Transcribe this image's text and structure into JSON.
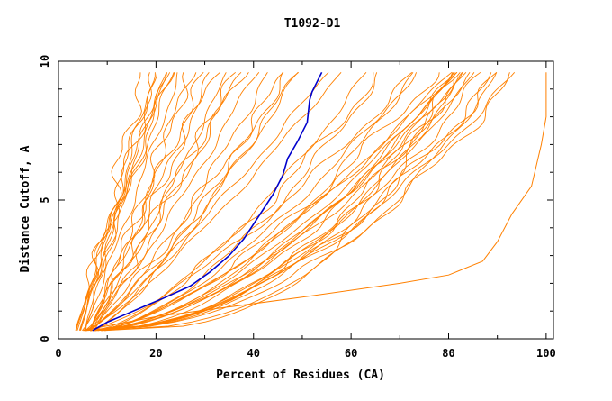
{
  "chart_data": {
    "type": "line",
    "title": "T1092-D1",
    "xlabel": "Percent of Residues (CA)",
    "ylabel": "Distance Cutoff, A",
    "xlim": [
      0,
      101.5
    ],
    "ylim": [
      0,
      10
    ],
    "x_ticks": [
      0,
      20,
      40,
      60,
      80,
      100
    ],
    "y_ticks": [
      0,
      5,
      10
    ],
    "grid": false,
    "legend": "none",
    "colors": {
      "models": "#ff8000",
      "highlight": "#0000cc"
    },
    "highlight_series": {
      "points": [
        [
          7,
          0.3
        ],
        [
          10,
          0.6
        ],
        [
          14,
          0.9
        ],
        [
          18,
          1.2
        ],
        [
          22,
          1.5
        ],
        [
          27,
          1.9
        ],
        [
          31,
          2.4
        ],
        [
          35,
          3.0
        ],
        [
          38,
          3.6
        ],
        [
          41,
          4.4
        ],
        [
          44,
          5.2
        ],
        [
          46,
          5.9
        ],
        [
          47,
          6.5
        ],
        [
          49,
          7.1
        ],
        [
          51,
          7.8
        ],
        [
          51.5,
          8.6
        ],
        [
          52,
          8.9
        ],
        [
          54,
          9.6
        ]
      ]
    },
    "envelope_series": {
      "points": [
        [
          5,
          0.3
        ],
        [
          20,
          0.8
        ],
        [
          50,
          1.5
        ],
        [
          70,
          2.0
        ],
        [
          80,
          2.3
        ],
        [
          87,
          2.8
        ],
        [
          90,
          3.5
        ],
        [
          93,
          4.5
        ],
        [
          97,
          5.5
        ],
        [
          99,
          7.0
        ],
        [
          100,
          8.0
        ],
        [
          100,
          9.6
        ]
      ]
    },
    "series_groups": [
      {
        "count": 10,
        "x0": [
          3.5,
          6.0
        ],
        "x_end": [
          17,
          25
        ],
        "bow": [
          -0.1,
          0.05
        ]
      },
      {
        "count": 9,
        "x0": [
          4.5,
          7.5
        ],
        "x_end": [
          26,
          38
        ],
        "bow": [
          -0.05,
          0.12
        ]
      },
      {
        "count": 8,
        "x0": [
          5.0,
          8.0
        ],
        "x_end": [
          40,
          58
        ],
        "bow": [
          0.1,
          0.3
        ]
      },
      {
        "count": 12,
        "x0": [
          5.0,
          9.0
        ],
        "x_end": [
          62,
          82
        ],
        "bow": [
          0.3,
          0.55
        ]
      },
      {
        "count": 14,
        "x0": [
          5.0,
          10.0
        ],
        "x_end": [
          80,
          94
        ],
        "bow": [
          0.45,
          0.75
        ]
      }
    ]
  }
}
